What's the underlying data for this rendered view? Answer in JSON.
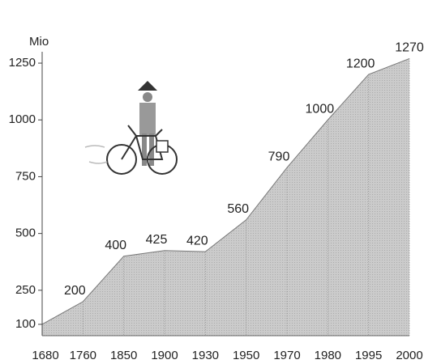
{
  "chart_data": {
    "type": "area",
    "y_label": "Mio",
    "categories": [
      "1680",
      "1760",
      "1850",
      "1900",
      "1930",
      "1950",
      "1970",
      "1980",
      "1995",
      "2000"
    ],
    "values": [
      100,
      200,
      400,
      425,
      420,
      560,
      790,
      1000,
      1200,
      1270
    ],
    "value_labels": [
      null,
      "200",
      "400",
      "425",
      "420",
      "560",
      "790",
      "1000",
      "1200",
      "1270"
    ],
    "color": "#c4c4c4",
    "ylim": [
      50,
      1300
    ],
    "yticks": [
      100,
      250,
      500,
      750,
      1000,
      1250
    ]
  }
}
